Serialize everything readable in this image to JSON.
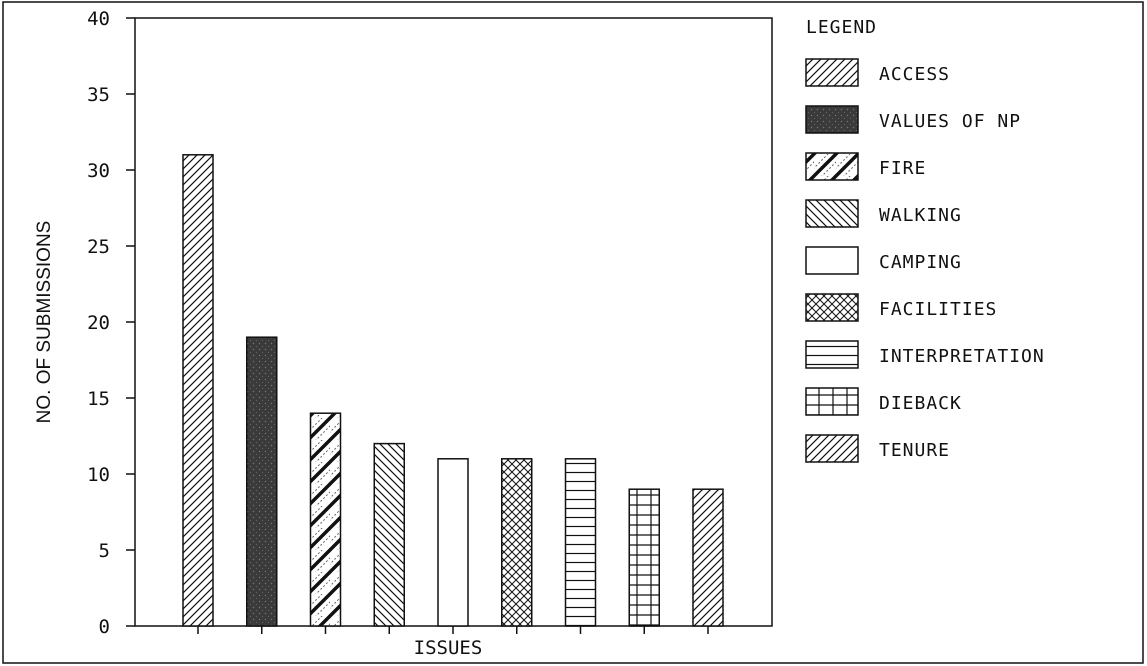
{
  "chart_data": {
    "type": "bar",
    "title": "",
    "xlabel": "ISSUES",
    "ylabel": "NO. OF SUBMISSIONS",
    "ylim": [
      0,
      40
    ],
    "yticks": [
      0,
      5,
      10,
      15,
      20,
      25,
      30,
      35,
      40
    ],
    "grid": false,
    "legend_title": "LEGEND",
    "legend_position": "right",
    "bars": [
      {
        "name": "ACCESS",
        "value": 31,
        "pattern": "diag-fine"
      },
      {
        "name": "VALUES OF NP",
        "value": 19,
        "pattern": "solid-dark"
      },
      {
        "name": "FIRE",
        "value": 14,
        "pattern": "diag-bold"
      },
      {
        "name": "WALKING",
        "value": 12,
        "pattern": "diag-back"
      },
      {
        "name": "CAMPING",
        "value": 11,
        "pattern": "empty"
      },
      {
        "name": "FACILITIES",
        "value": 11,
        "pattern": "crosshatch"
      },
      {
        "name": "INTERPRETATION",
        "value": 11,
        "pattern": "horizontal"
      },
      {
        "name": "DIEBACK",
        "value": 9,
        "pattern": "grid"
      },
      {
        "name": "TENURE",
        "value": 9,
        "pattern": "diag-fine"
      }
    ]
  },
  "colors": {
    "ink": "#111111",
    "dark_fill": "#3a3a3a",
    "background": "#ffffff"
  }
}
